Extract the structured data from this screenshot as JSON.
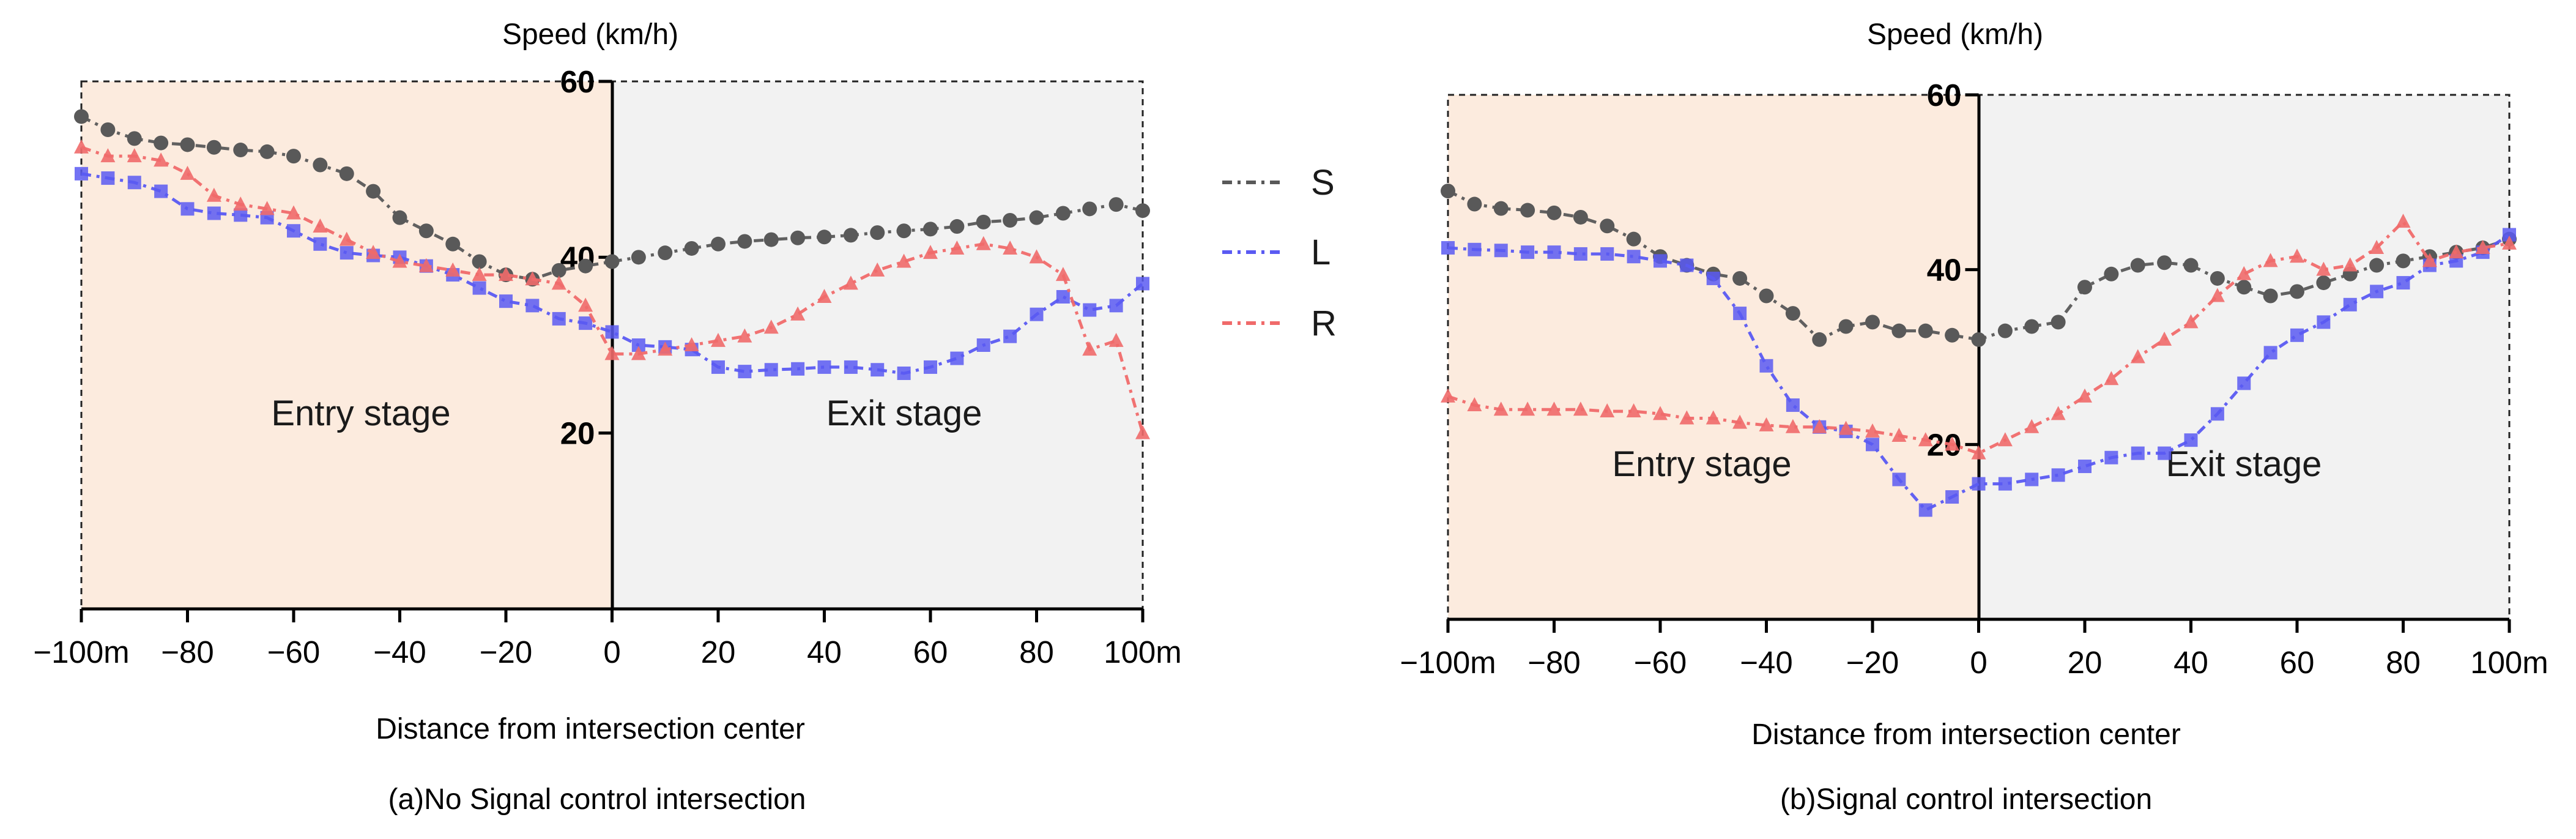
{
  "chart_data": [
    {
      "type": "line",
      "panel": "a",
      "caption": "(a)No Signal control intersection",
      "ylabel": "Speed (km/h)",
      "xlabel": "Distance from intersection center",
      "xlim": [
        -100,
        100
      ],
      "ylim": [
        0,
        60
      ],
      "x_tick_labels": [
        "−100m",
        "−80",
        "−60",
        "−40",
        "−20",
        "0",
        "20",
        "40",
        "60",
        "80",
        "100m"
      ],
      "y_tick_labels": [
        "20",
        "40",
        "60"
      ],
      "regions": [
        {
          "label": "Entry stage",
          "x_range": [
            -100,
            0
          ],
          "color": "#fcebde"
        },
        {
          "label": "Exit stage",
          "x_range": [
            0,
            100
          ],
          "color": "#f2f2f2"
        }
      ],
      "series": [
        {
          "name": "S",
          "color": "#595959",
          "marker": "circle",
          "x": [
            -100,
            -95,
            -90,
            -85,
            -80,
            -75,
            -70,
            -65,
            -60,
            -55,
            -50,
            -45,
            -40,
            -35,
            -30,
            -25,
            -20,
            -15,
            -10,
            -5,
            0,
            5,
            10,
            15,
            20,
            25,
            30,
            35,
            40,
            45,
            50,
            55,
            60,
            65,
            70,
            75,
            80,
            85,
            90,
            95,
            100
          ],
          "values": [
            56,
            54.5,
            53.5,
            53,
            52.8,
            52.5,
            52.2,
            52,
            51.5,
            50.5,
            49.5,
            47.5,
            44.5,
            43,
            41.5,
            39.5,
            38,
            37.5,
            38.5,
            39,
            39.5,
            40,
            40.5,
            41,
            41.5,
            41.8,
            42,
            42.2,
            42.3,
            42.5,
            42.8,
            43,
            43.2,
            43.5,
            44,
            44.2,
            44.5,
            45,
            45.5,
            46,
            45.3
          ]
        },
        {
          "name": "L",
          "color": "#5a5af2",
          "marker": "square",
          "x": [
            -100,
            -95,
            -90,
            -85,
            -80,
            -75,
            -70,
            -65,
            -60,
            -55,
            -50,
            -45,
            -40,
            -35,
            -30,
            -25,
            -20,
            -15,
            -10,
            -5,
            0,
            5,
            10,
            15,
            20,
            25,
            30,
            35,
            40,
            45,
            50,
            55,
            60,
            65,
            70,
            75,
            80,
            85,
            90,
            95,
            100
          ],
          "values": [
            49.5,
            49,
            48.5,
            47.5,
            45.5,
            45,
            44.8,
            44.5,
            43,
            41.5,
            40.5,
            40.2,
            40,
            39,
            38,
            36.5,
            35,
            34.5,
            33,
            32.5,
            31.5,
            30,
            29.8,
            29.5,
            27.5,
            27,
            27.2,
            27.3,
            27.5,
            27.5,
            27.2,
            26.8,
            27.5,
            28.5,
            30,
            31,
            33.5,
            35.5,
            34,
            34.5,
            37
          ]
        },
        {
          "name": "R",
          "color": "#f06a6a",
          "marker": "triangle",
          "x": [
            -100,
            -95,
            -90,
            -85,
            -80,
            -75,
            -70,
            -65,
            -60,
            -55,
            -50,
            -45,
            -40,
            -35,
            -30,
            -25,
            -20,
            -15,
            -10,
            -5,
            0,
            5,
            10,
            15,
            20,
            25,
            30,
            35,
            40,
            45,
            50,
            55,
            60,
            65,
            70,
            75,
            80,
            85,
            90,
            95,
            100
          ],
          "values": [
            52.5,
            51.5,
            51.5,
            51,
            49.5,
            47,
            46,
            45.5,
            45,
            43.5,
            42,
            40.5,
            39.5,
            39,
            38.5,
            38,
            38,
            37.5,
            37,
            34.5,
            29,
            29,
            29.5,
            30,
            30.5,
            31,
            32,
            33.5,
            35.5,
            37,
            38.5,
            39.5,
            40.5,
            41,
            41.5,
            41,
            40,
            38,
            29.5,
            30.5,
            20
          ]
        }
      ]
    },
    {
      "type": "line",
      "panel": "b",
      "caption": "(b)Signal control intersection",
      "ylabel": "Speed (km/h)",
      "xlabel": "Distance from intersection center",
      "xlim": [
        -100,
        100
      ],
      "ylim": [
        0,
        60
      ],
      "x_tick_labels": [
        "−100m",
        "−80",
        "−60",
        "−40",
        "−20",
        "0",
        "20",
        "40",
        "60",
        "80",
        "100m"
      ],
      "y_tick_labels": [
        "20",
        "40",
        "60"
      ],
      "regions": [
        {
          "label": "Entry stage",
          "x_range": [
            -100,
            0
          ],
          "color": "#fcebde"
        },
        {
          "label": "Exit stage",
          "x_range": [
            0,
            100
          ],
          "color": "#f2f2f2"
        }
      ],
      "series": [
        {
          "name": "S",
          "color": "#595959",
          "marker": "circle",
          "x": [
            -100,
            -95,
            -90,
            -85,
            -80,
            -75,
            -70,
            -65,
            -60,
            -55,
            -50,
            -45,
            -40,
            -35,
            -30,
            -25,
            -20,
            -15,
            -10,
            -5,
            0,
            5,
            10,
            15,
            20,
            25,
            30,
            35,
            40,
            45,
            50,
            55,
            60,
            65,
            70,
            75,
            80,
            85,
            90,
            95,
            100
          ],
          "values": [
            49,
            47.5,
            47,
            46.8,
            46.5,
            46,
            45,
            43.5,
            41.5,
            40.5,
            39.5,
            39,
            37,
            35,
            32,
            33.5,
            34,
            33,
            33,
            32.5,
            32,
            33,
            33.5,
            34,
            38,
            39.5,
            40.5,
            40.8,
            40.5,
            39,
            38,
            37,
            37.5,
            38.5,
            39.5,
            40.5,
            41,
            41.5,
            42,
            42.5,
            43.5
          ]
        },
        {
          "name": "L",
          "color": "#5a5af2",
          "marker": "square",
          "x": [
            -100,
            -95,
            -90,
            -85,
            -80,
            -75,
            -70,
            -65,
            -60,
            -55,
            -50,
            -45,
            -40,
            -35,
            -30,
            -25,
            -20,
            -15,
            -10,
            -5,
            0,
            5,
            10,
            15,
            20,
            25,
            30,
            35,
            40,
            45,
            50,
            55,
            60,
            65,
            70,
            75,
            80,
            85,
            90,
            95,
            100
          ],
          "values": [
            42.5,
            42.3,
            42.2,
            42,
            42,
            41.8,
            41.8,
            41.5,
            41,
            40.5,
            39,
            35,
            29,
            24.5,
            22,
            21.5,
            20,
            16,
            12.5,
            14,
            15.5,
            15.5,
            16,
            16.5,
            17.5,
            18.5,
            19,
            19,
            20.5,
            23.5,
            27,
            30.5,
            32.5,
            34,
            36,
            37.5,
            38.5,
            40.5,
            41,
            42,
            44
          ]
        },
        {
          "name": "R",
          "color": "#f06a6a",
          "marker": "triangle",
          "x": [
            -100,
            -95,
            -90,
            -85,
            -80,
            -75,
            -70,
            -65,
            -60,
            -55,
            -50,
            -45,
            -40,
            -35,
            -30,
            -25,
            -20,
            -15,
            -10,
            -5,
            0,
            5,
            10,
            15,
            20,
            25,
            30,
            35,
            40,
            45,
            50,
            55,
            60,
            65,
            70,
            75,
            80,
            85,
            90,
            95,
            100
          ],
          "values": [
            25.5,
            24.5,
            24,
            24,
            24,
            24,
            23.8,
            23.8,
            23.5,
            23,
            23,
            22.5,
            22.2,
            22,
            22,
            21.8,
            21.5,
            21,
            20.5,
            20,
            19,
            20.5,
            22,
            23.5,
            25.5,
            27.5,
            30,
            32,
            34,
            37,
            39.5,
            41,
            41.5,
            40,
            40.5,
            42.5,
            45.5,
            41,
            42,
            42.5,
            43
          ]
        }
      ]
    }
  ],
  "legend": [
    {
      "label": "S",
      "color": "#595959"
    },
    {
      "label": "L",
      "color": "#5a5af2"
    },
    {
      "label": "R",
      "color": "#f06a6a"
    }
  ]
}
